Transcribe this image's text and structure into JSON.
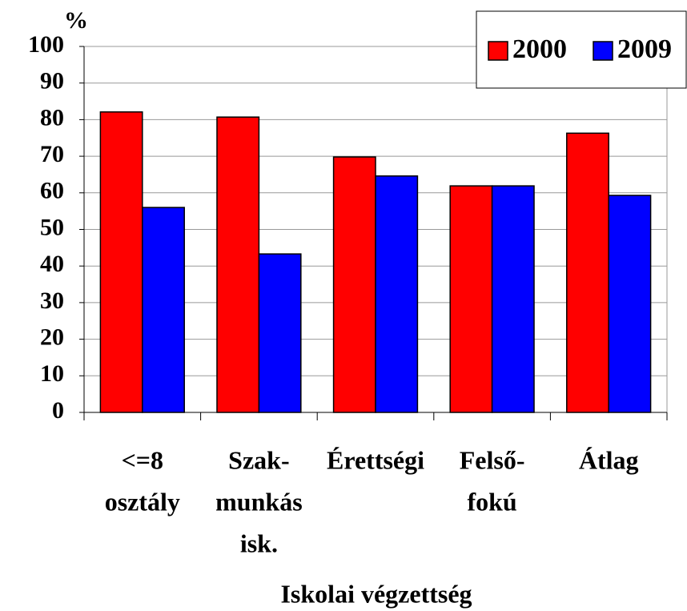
{
  "chart_data": {
    "type": "bar",
    "y_label": "%",
    "x_label": "Iskolai végzettség",
    "categories": [
      [
        "<=8",
        "osztály"
      ],
      [
        "Szak-",
        "munkás",
        "isk."
      ],
      [
        "Érettségi"
      ],
      [
        "Felső-",
        "fokú"
      ],
      [
        "Átlag"
      ]
    ],
    "series": [
      {
        "name": "2000",
        "color": "#ff0000",
        "values": [
          82.1,
          80.7,
          69.8,
          61.9,
          76.3
        ]
      },
      {
        "name": "2009",
        "color": "#0000ff",
        "values": [
          56,
          43.3,
          64.6,
          61.9,
          59.3
        ]
      }
    ],
    "ylim": [
      0,
      100
    ],
    "yticks": [
      0,
      10,
      20,
      30,
      40,
      50,
      60,
      70,
      80,
      90,
      100
    ],
    "grid": true,
    "legend": "top-right"
  }
}
